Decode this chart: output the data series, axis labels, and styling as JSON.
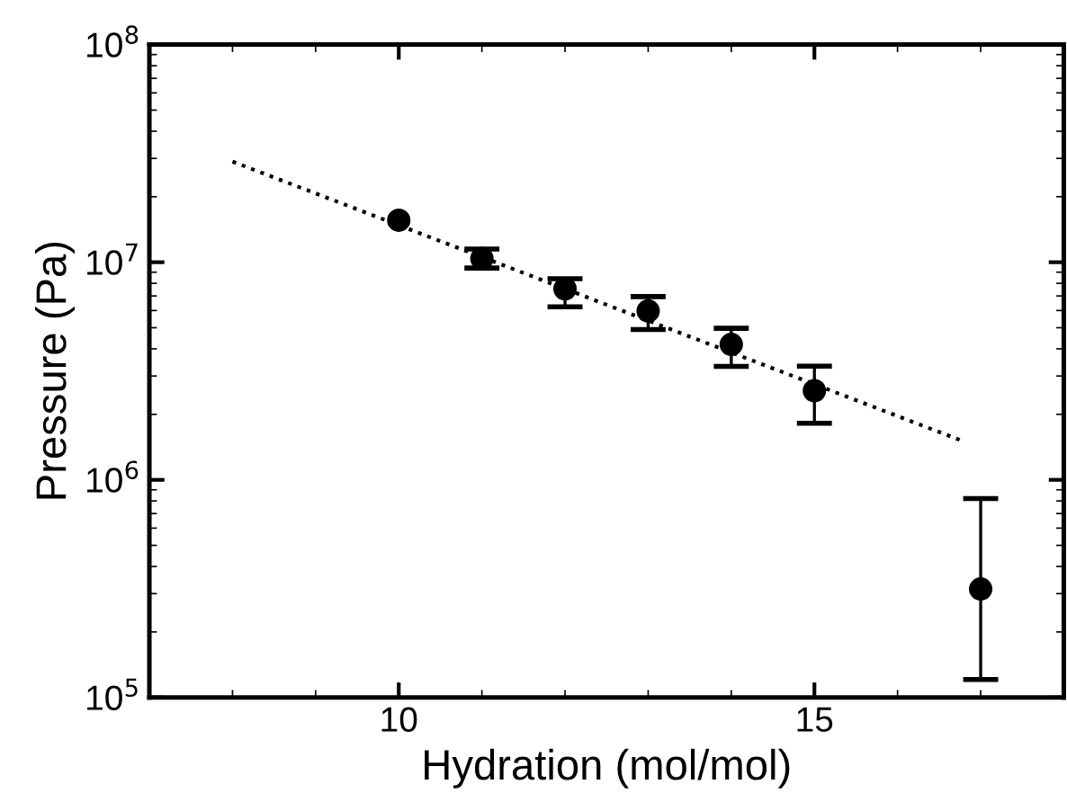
{
  "chart_data": {
    "type": "scatter",
    "xlabel": "Hydration (mol/mol)",
    "ylabel": "Pressure (Pa)",
    "log": "y",
    "xlim": [
      7,
      18
    ],
    "xticks": [
      10,
      15
    ],
    "ylim": [
      100000,
      100000000
    ],
    "yticks": [
      {
        "value": 100000,
        "label": "10$^{5}$"
      },
      {
        "value": 1000000,
        "label": "10$^{6}$"
      },
      {
        "value": 10000000,
        "label": "10$^{7}$"
      },
      {
        "value": 100000000,
        "label": "10$^{8}$"
      }
    ],
    "grid": false,
    "legend": false,
    "marker": "circle",
    "series": [
      {
        "color": "#000000",
        "x": [
          10,
          11,
          12,
          13,
          14,
          15,
          17
        ],
        "values": [
          15600000,
          10400000,
          7550000,
          5970000,
          4190000,
          2570000,
          315000
        ],
        "errors": [
          null,
          [
            9400000,
            11500000
          ],
          [
            6240000,
            8400000
          ],
          [
            4910000,
            6950000
          ],
          [
            3320000,
            4970000
          ],
          [
            1820000,
            3330000
          ],
          [
            121000,
            820000
          ]
        ]
      },
      {
        "type": "line",
        "color": "#000000",
        "line_style": "dotted",
        "marker": "none",
        "x": [
          8,
          16.8
        ],
        "values": [
          29000000,
          1500000
        ]
      }
    ]
  }
}
